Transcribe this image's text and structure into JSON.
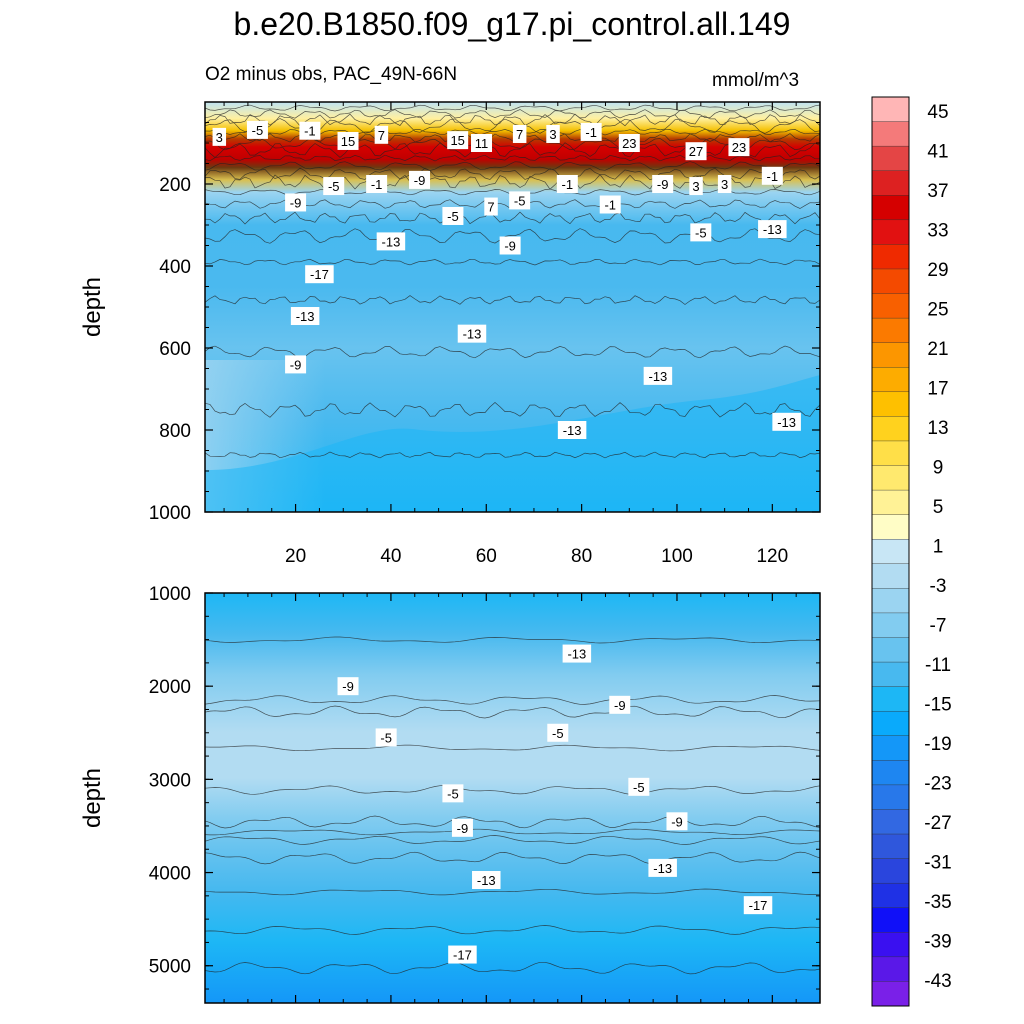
{
  "title": "b.e20.B1850.f09_g17.pi_control.all.149",
  "subtitle": "O2 minus obs, PAC_49N-66N",
  "units": "mmol/m^3",
  "chart_data": {
    "type": "heatmap",
    "title": "b.e20.B1850.f09_g17.pi_control.all.149",
    "subtitle": "O2 minus obs, PAC_49N-66N",
    "units": "mmol/m^3",
    "xlim": [
      1,
      130
    ],
    "x_ticks": [
      20,
      40,
      60,
      80,
      100,
      120
    ],
    "panels": [
      {
        "name": "upper",
        "ylabel": "depth",
        "ylim": [
          0,
          1000
        ],
        "y_ticks": [
          200,
          400,
          600,
          800,
          1000
        ],
        "y_tick_labels": [
          "200",
          "400",
          "600",
          "800",
          "1000"
        ],
        "show_x_tick_labels": true,
        "contour_labels": [
          {
            "x": 4,
            "y": 85,
            "label": "3"
          },
          {
            "x": 12,
            "y": 68,
            "label": "-5"
          },
          {
            "x": 23,
            "y": 70,
            "label": "-1"
          },
          {
            "x": 31,
            "y": 95,
            "label": "15"
          },
          {
            "x": 38,
            "y": 80,
            "label": "7"
          },
          {
            "x": 54,
            "y": 93,
            "label": "15"
          },
          {
            "x": 59,
            "y": 100,
            "label": "11"
          },
          {
            "x": 67,
            "y": 78,
            "label": "7"
          },
          {
            "x": 74,
            "y": 78,
            "label": "3"
          },
          {
            "x": 82,
            "y": 73,
            "label": "-1"
          },
          {
            "x": 90,
            "y": 100,
            "label": "23"
          },
          {
            "x": 104,
            "y": 120,
            "label": "27"
          },
          {
            "x": 113,
            "y": 110,
            "label": "23"
          },
          {
            "x": 20,
            "y": 245,
            "label": "-9"
          },
          {
            "x": 28,
            "y": 205,
            "label": "-5"
          },
          {
            "x": 37,
            "y": 200,
            "label": "-1"
          },
          {
            "x": 46,
            "y": 190,
            "label": "-9"
          },
          {
            "x": 53,
            "y": 278,
            "label": "-5"
          },
          {
            "x": 61,
            "y": 255,
            "label": "7"
          },
          {
            "x": 67,
            "y": 240,
            "label": "-5"
          },
          {
            "x": 77,
            "y": 200,
            "label": "-1"
          },
          {
            "x": 86,
            "y": 250,
            "label": "-1"
          },
          {
            "x": 97,
            "y": 200,
            "label": "-9"
          },
          {
            "x": 104,
            "y": 205,
            "label": "3"
          },
          {
            "x": 110,
            "y": 200,
            "label": "3"
          },
          {
            "x": 120,
            "y": 180,
            "label": "-1"
          },
          {
            "x": 40,
            "y": 340,
            "label": "-13"
          },
          {
            "x": 65,
            "y": 350,
            "label": "-9"
          },
          {
            "x": 105,
            "y": 318,
            "label": "-5"
          },
          {
            "x": 120,
            "y": 310,
            "label": "-13"
          },
          {
            "x": 25,
            "y": 420,
            "label": "-17"
          },
          {
            "x": 22,
            "y": 522,
            "label": "-13"
          },
          {
            "x": 57,
            "y": 565,
            "label": "-13"
          },
          {
            "x": 20,
            "y": 640,
            "label": "-9"
          },
          {
            "x": 96,
            "y": 668,
            "label": "-13"
          },
          {
            "x": 78,
            "y": 800,
            "label": "-13"
          },
          {
            "x": 123,
            "y": 780,
            "label": "-13"
          }
        ]
      },
      {
        "name": "lower",
        "ylabel": "depth",
        "ylim": [
          1000,
          5400
        ],
        "y_ticks": [
          1000,
          2000,
          3000,
          4000,
          5000
        ],
        "y_tick_labels": [
          "1000",
          "2000",
          "3000",
          "4000",
          "5000"
        ],
        "show_x_tick_labels": false,
        "contour_labels": [
          {
            "x": 79,
            "y": 1650,
            "label": "-13"
          },
          {
            "x": 31,
            "y": 2000,
            "label": "-9"
          },
          {
            "x": 88,
            "y": 2200,
            "label": "-9"
          },
          {
            "x": 39,
            "y": 2550,
            "label": "-5"
          },
          {
            "x": 75,
            "y": 2500,
            "label": "-5"
          },
          {
            "x": 53,
            "y": 3150,
            "label": "-5"
          },
          {
            "x": 92,
            "y": 3080,
            "label": "-5"
          },
          {
            "x": 55,
            "y": 3520,
            "label": "-9"
          },
          {
            "x": 100,
            "y": 3450,
            "label": "-9"
          },
          {
            "x": 60,
            "y": 4080,
            "label": "-13"
          },
          {
            "x": 97,
            "y": 3950,
            "label": "-13"
          },
          {
            "x": 117,
            "y": 4350,
            "label": "-17"
          },
          {
            "x": 55,
            "y": 4880,
            "label": "-17"
          }
        ]
      }
    ],
    "colorbar": {
      "labels": [
        "45",
        "41",
        "37",
        "33",
        "29",
        "25",
        "21",
        "17",
        "13",
        "9",
        "5",
        "1",
        "-3",
        "-7",
        "-11",
        "-15",
        "-19",
        "-23",
        "-27",
        "-31",
        "-35",
        "-39",
        "-43"
      ],
      "colors": [
        "#ffb6b6",
        "#f47a7a",
        "#e44545",
        "#dd2121",
        "#d50000",
        "#e11111",
        "#ef2a00",
        "#f44a00",
        "#f86000",
        "#fb7a00",
        "#fc9600",
        "#fdac00",
        "#fec000",
        "#ffd21e",
        "#ffdf48",
        "#ffe96e",
        "#fff296",
        "#fffdc6",
        "#c8e6f5",
        "#b2dcf2",
        "#9bd4f1",
        "#82ccf0",
        "#68c3ef",
        "#48b9ef",
        "#1db7f5",
        "#0aaafb",
        "#1497f8",
        "#1e86f1",
        "#2878ea",
        "#3268e2",
        "#2f57dc",
        "#2a45dd",
        "#1f31e5",
        "#1010f8",
        "#3a10f0",
        "#5a18e8",
        "#7a20e8"
      ]
    }
  }
}
